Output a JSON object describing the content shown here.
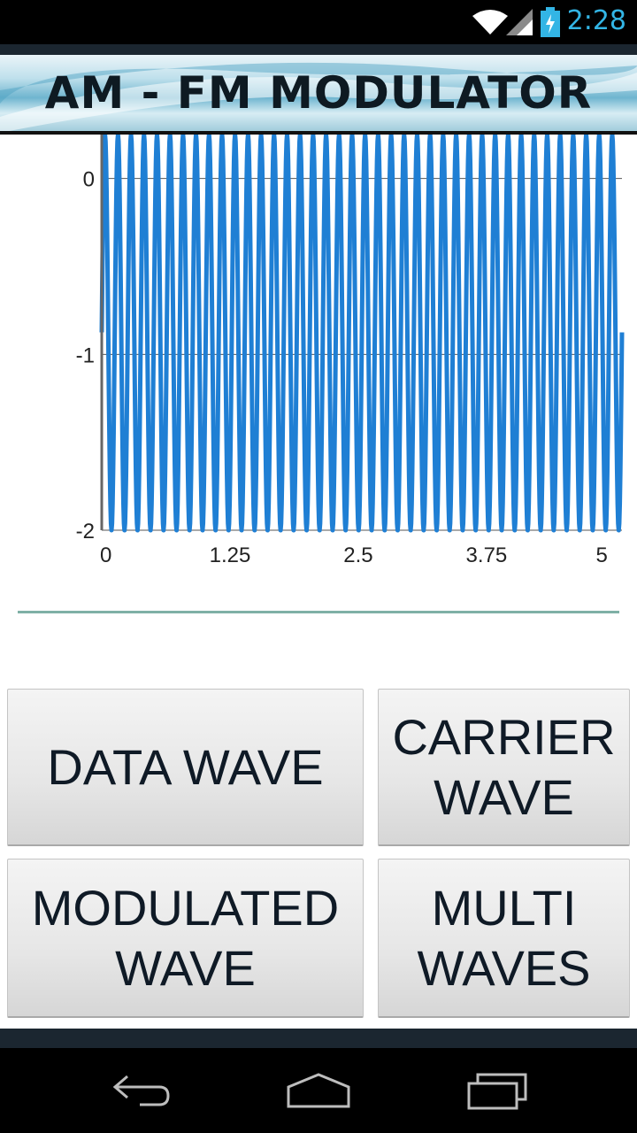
{
  "status_bar": {
    "time": "2:28",
    "icons": [
      "wifi-icon",
      "signal-icon",
      "battery-charging-icon"
    ],
    "accent_color": "#33b5e5"
  },
  "banner": {
    "title": "AM - FM MODULATOR"
  },
  "chart_data": {
    "type": "line",
    "title": "",
    "xlabel": "",
    "ylabel": "",
    "x_ticks": [
      "0",
      "1.25",
      "2.5",
      "3.75",
      "5"
    ],
    "y_ticks": [
      "0",
      "-1",
      "-2"
    ],
    "xlim": [
      0,
      5.07
    ],
    "ylim": [
      -2,
      0.25
    ],
    "grid": true,
    "series_color": "#1f7fd4",
    "series": [
      {
        "x_start": 0,
        "x_end": 5.07,
        "cycles": 40,
        "y_min": -2,
        "y_max": 0.25
      }
    ]
  },
  "buttons": {
    "data_wave": [
      "DATA WAVE"
    ],
    "carrier_wave": [
      "CARRIER",
      "WAVE"
    ],
    "modulated_wave": [
      "MODULATED",
      "WAVE"
    ],
    "multi_waves": [
      "MULTI",
      "WAVES"
    ]
  },
  "nav_bar": {
    "icons": [
      "back-icon",
      "home-icon",
      "recent-apps-icon"
    ]
  }
}
